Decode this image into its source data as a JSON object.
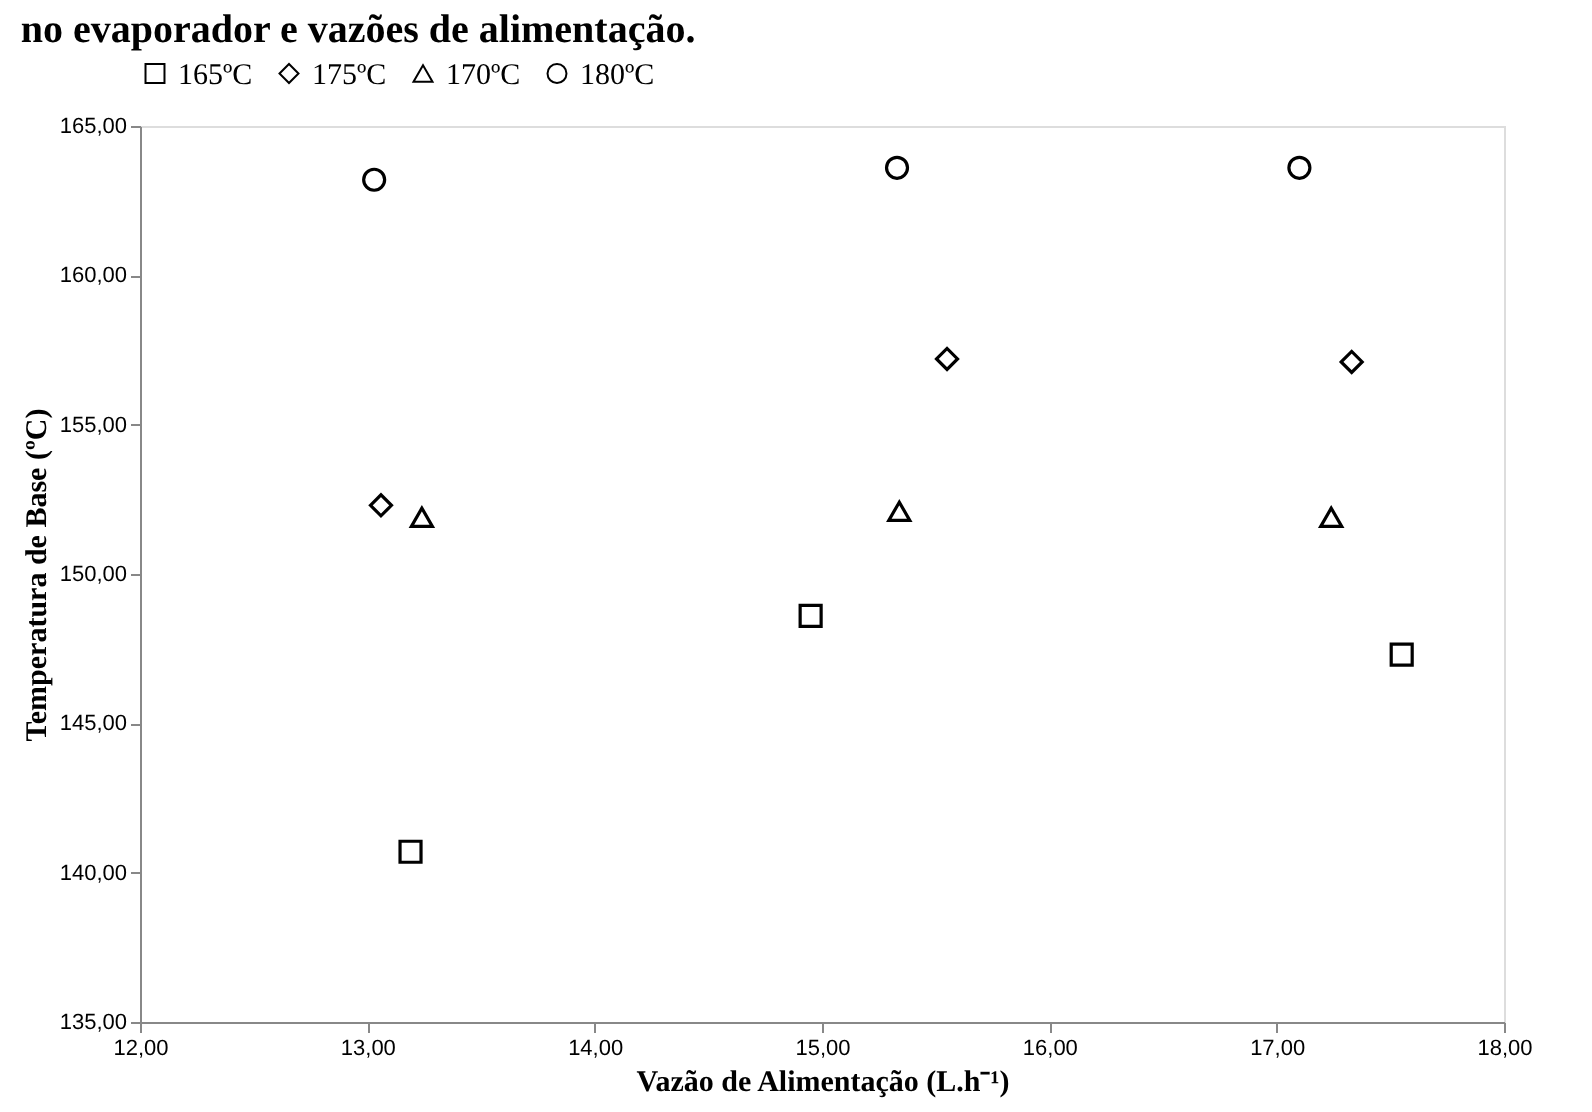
{
  "chart_data": {
    "type": "scatter",
    "title": "no evaporador e vazões de alimentação.",
    "xlabel": "Vazão de Alimentação (L.h⁻¹)",
    "ylabel": "Temperatura de Base (ºC)",
    "series": [
      {
        "name": "165ºC",
        "color": "#000000",
        "marker": "square",
        "x": [
          13.19,
          14.95,
          17.55
        ],
        "values": [
          140.7,
          148.6,
          147.3
        ]
      },
      {
        "name": "175ºC",
        "color": "#000000",
        "marker": "diamond",
        "x": [
          13.06,
          15.55,
          17.33
        ],
        "values": [
          152.3,
          157.2,
          157.1
        ]
      },
      {
        "name": "170ºC",
        "color": "#000000",
        "marker": "triangle",
        "x": [
          13.24,
          15.34,
          17.24
        ],
        "values": [
          151.9,
          152.1,
          151.9
        ]
      },
      {
        "name": "180ºC",
        "color": "#000000",
        "marker": "circle",
        "x": [
          13.03,
          15.33,
          17.1
        ],
        "values": [
          163.2,
          163.6,
          163.6
        ]
      }
    ],
    "xlim": [
      12,
      18
    ],
    "xticks": [
      {
        "value": 12,
        "label": "12,00"
      },
      {
        "value": 13,
        "label": "13,00"
      },
      {
        "value": 14,
        "label": "14,00"
      },
      {
        "value": 15,
        "label": "15,00"
      },
      {
        "value": 16,
        "label": "16,00"
      },
      {
        "value": 17,
        "label": "17,00"
      },
      {
        "value": 18,
        "label": "18,00"
      }
    ],
    "ylim": [
      135,
      165
    ],
    "yticks": [
      {
        "value": 135,
        "label": "135,00"
      },
      {
        "value": 140,
        "label": "140,00"
      },
      {
        "value": 145,
        "label": "145,00"
      },
      {
        "value": 150,
        "label": "150,00"
      },
      {
        "value": 155,
        "label": "155,00"
      },
      {
        "value": 160,
        "label": "160,00"
      },
      {
        "value": 165,
        "label": "165,00"
      }
    ],
    "grid": false,
    "legend": "top"
  }
}
